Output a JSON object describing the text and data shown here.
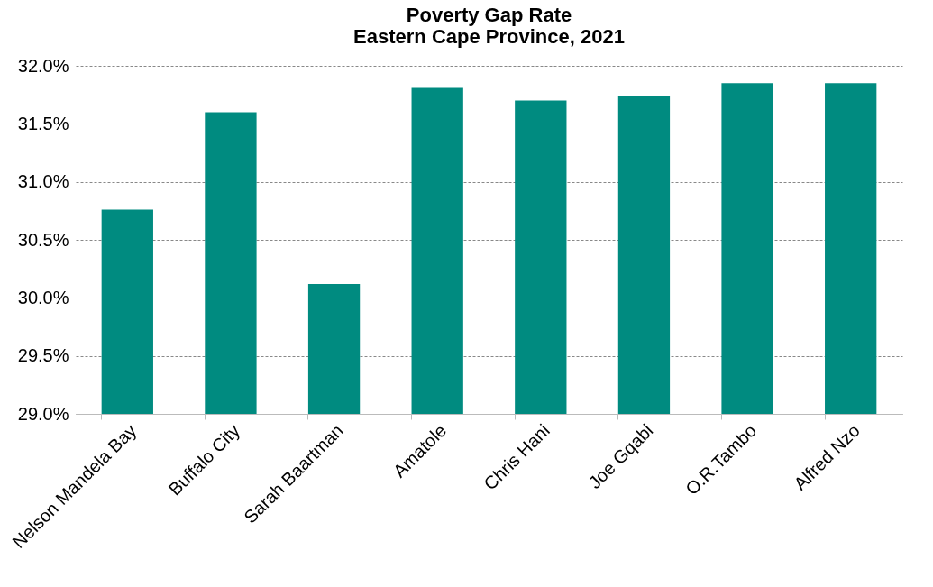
{
  "chart_data": {
    "type": "bar",
    "title": "Poverty Gap Rate",
    "subtitle": "Eastern Cape Province, 2021",
    "categories": [
      "Nelson Mandela Bay",
      "Buffalo City",
      "Sarah Baartman",
      "Amatole",
      "Chris Hani",
      "Joe Gqabi",
      "O.R.Tambo",
      "Alfred Nzo"
    ],
    "values": [
      30.76,
      31.6,
      30.12,
      31.81,
      31.7,
      31.74,
      31.85,
      31.85
    ],
    "color": "#008b80",
    "ylim": [
      29.0,
      32.0
    ],
    "yticks": [
      {
        "value": 29.0,
        "label": "29.0%"
      },
      {
        "value": 29.5,
        "label": "29.5%"
      },
      {
        "value": 30.0,
        "label": "30.0%"
      },
      {
        "value": 30.5,
        "label": "30.5%"
      },
      {
        "value": 31.0,
        "label": "31.0%"
      },
      {
        "value": 31.5,
        "label": "31.5%"
      },
      {
        "value": 32.0,
        "label": "32.0%"
      }
    ],
    "grid": "y",
    "line_style": "dashed"
  }
}
